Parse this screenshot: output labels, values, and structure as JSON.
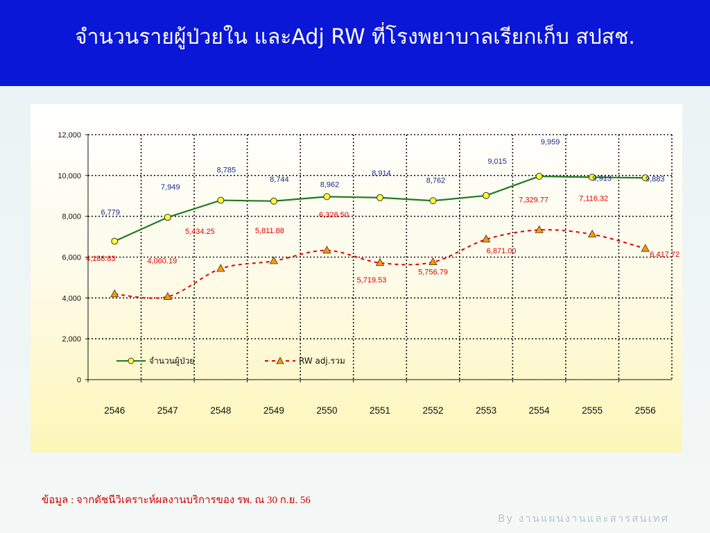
{
  "slide": {
    "title": "จำนวนรายผู้ป่วยใน และAdj RW ที่โรงพยาบาลเรียกเก็บ สปสช.",
    "source_note": "ข้อมูล : จากดัชนีวิเคราะห์ผลงานบริการของ รพ. ณ 30 ก.ย. 56",
    "footer": "By งานแผนงานและสารสนเทศ"
  },
  "colors": {
    "title_bar": "#0a17d6",
    "patients_line": "#1f7a1f",
    "patients_marker": "#ffff33",
    "patients_label": "#1a2a8a",
    "rw_line": "#e00000",
    "rw_marker": "#ff9900",
    "rw_label": "#e00000"
  },
  "chart_data": {
    "type": "line",
    "categories": [
      "2546",
      "2547",
      "2548",
      "2549",
      "2550",
      "2551",
      "2552",
      "2553",
      "2554",
      "2555",
      "2556"
    ],
    "ylim": [
      0,
      12000
    ],
    "yticks": [
      "0",
      "2,000",
      "4,000",
      "6,000",
      "8,000",
      "10,000",
      "12,000"
    ],
    "grid": true,
    "legend_position": "bottom-left inside plot",
    "series": [
      {
        "name": "จำนวนผู้ป่วย",
        "style": "solid",
        "marker": "circle",
        "values": [
          6779,
          7949,
          8785,
          8744,
          8962,
          8914,
          8762,
          9015,
          9959,
          9913,
          9883
        ],
        "labels": [
          "6,779",
          "7,949",
          "8,785",
          "8,744",
          "8,962",
          "8,914",
          "8,762",
          "9,015",
          "9,959",
          "9,913",
          "9,883"
        ]
      },
      {
        "name": "RW adj.รวม",
        "style": "dashed",
        "marker": "triangle",
        "values": [
          4188.83,
          4060.19,
          5434.25,
          5811.88,
          6328.5,
          5719.53,
          5756.79,
          6871.0,
          7329.77,
          7116.32,
          6417.72
        ],
        "labels": [
          "4,188.83",
          "4,060.19",
          "5,434.25",
          "5,811.88",
          "6,328.50",
          "5,719.53",
          "5,756.79",
          "6,871.00",
          "7,329.77",
          "7,116.32",
          "6,417.72"
        ]
      }
    ]
  }
}
